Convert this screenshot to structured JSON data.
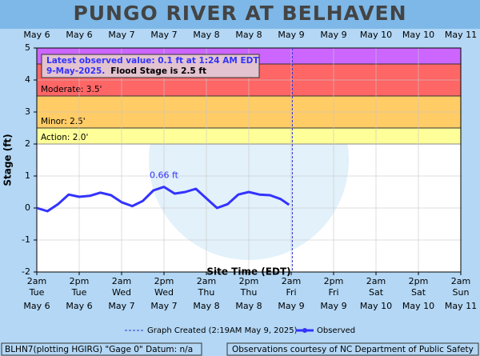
{
  "chart_data": {
    "type": "line",
    "title": "PUNGO RIVER AT BELHAVEN",
    "xlabel": "Site Time (EDT)",
    "ylabel": "Stage (ft)",
    "xlim": [
      "2025-05-06T02:00",
      "2025-05-11T02:00"
    ],
    "ylim": [
      -2,
      5
    ],
    "yticks": [
      -2,
      -1,
      0,
      1,
      2,
      3,
      4,
      5
    ],
    "xticks": [
      {
        "value": "2025-05-06T02:00",
        "label": "2am",
        "day": "Tue",
        "date": "May 6"
      },
      {
        "value": "2025-05-06T14:00",
        "label": "2pm",
        "day": "Tue",
        "date": "May 6"
      },
      {
        "value": "2025-05-07T02:00",
        "label": "2am",
        "day": "Wed",
        "date": "May 7"
      },
      {
        "value": "2025-05-07T14:00",
        "label": "2pm",
        "day": "Wed",
        "date": "May 7"
      },
      {
        "value": "2025-05-08T02:00",
        "label": "2am",
        "day": "Thu",
        "date": "May 8"
      },
      {
        "value": "2025-05-08T14:00",
        "label": "2pm",
        "day": "Thu",
        "date": "May 8"
      },
      {
        "value": "2025-05-09T02:00",
        "label": "2am",
        "day": "Fri",
        "date": "May 9"
      },
      {
        "value": "2025-05-09T14:00",
        "label": "2pm",
        "day": "Fri",
        "date": "May 9"
      },
      {
        "value": "2025-05-10T02:00",
        "label": "2am",
        "day": "Sat",
        "date": "May 10"
      },
      {
        "value": "2025-05-10T14:00",
        "label": "2pm",
        "day": "Sat",
        "date": "May 10"
      },
      {
        "value": "2025-05-11T02:00",
        "label": "2am",
        "day": "Sun",
        "date": "May 11"
      }
    ],
    "grid": true,
    "flood_bands": [
      {
        "label": "Action: 2.0'",
        "from": 2,
        "to": 2.5,
        "color": "#ffff99"
      },
      {
        "label": "Minor: 2.5'",
        "from": 2.5,
        "to": 3.5,
        "color": "#ffcc66"
      },
      {
        "label": "Moderate: 3.5'",
        "from": 3.5,
        "to": 4.5,
        "color": "#ff6666"
      },
      {
        "label": null,
        "from": 4.5,
        "to": 5,
        "color": "#cc66ff"
      }
    ],
    "graph_created": {
      "x": "2025-05-09T02:19",
      "name": "Graph Created (2:19AM May 9, 2025)",
      "color": "#3333cc"
    },
    "series": [
      {
        "name": "Observed",
        "color": "#3333ff",
        "x": [
          "2025-05-06T02:00",
          "2025-05-06T05:00",
          "2025-05-06T08:00",
          "2025-05-06T11:00",
          "2025-05-06T14:00",
          "2025-05-06T17:00",
          "2025-05-06T20:00",
          "2025-05-06T23:00",
          "2025-05-07T02:00",
          "2025-05-07T05:00",
          "2025-05-07T08:00",
          "2025-05-07T11:00",
          "2025-05-07T14:00",
          "2025-05-07T17:00",
          "2025-05-07T20:00",
          "2025-05-07T23:00",
          "2025-05-08T02:00",
          "2025-05-08T05:00",
          "2025-05-08T08:00",
          "2025-05-08T11:00",
          "2025-05-08T14:00",
          "2025-05-08T17:00",
          "2025-05-08T20:00",
          "2025-05-08T23:00",
          "2025-05-09T01:24"
        ],
        "values": [
          0.0,
          -0.1,
          0.12,
          0.42,
          0.35,
          0.38,
          0.48,
          0.4,
          0.18,
          0.06,
          0.22,
          0.55,
          0.66,
          0.45,
          0.5,
          0.6,
          0.3,
          0.0,
          0.12,
          0.42,
          0.5,
          0.42,
          0.4,
          0.28,
          0.1
        ]
      }
    ],
    "peak_annotation": {
      "text": "0.66 ft",
      "index": 12
    },
    "info_box": [
      "Latest observed value: 0.1 ft at 1:24 AM EDT",
      "9-May-2025.",
      "Flood Stage is 2.5 ft"
    ],
    "footer_left": "BLHN7(plotting HGIRG) \"Gage 0\" Datum: n/a",
    "footer_right": "Observations courtesy of NC Department of Public Safety"
  }
}
